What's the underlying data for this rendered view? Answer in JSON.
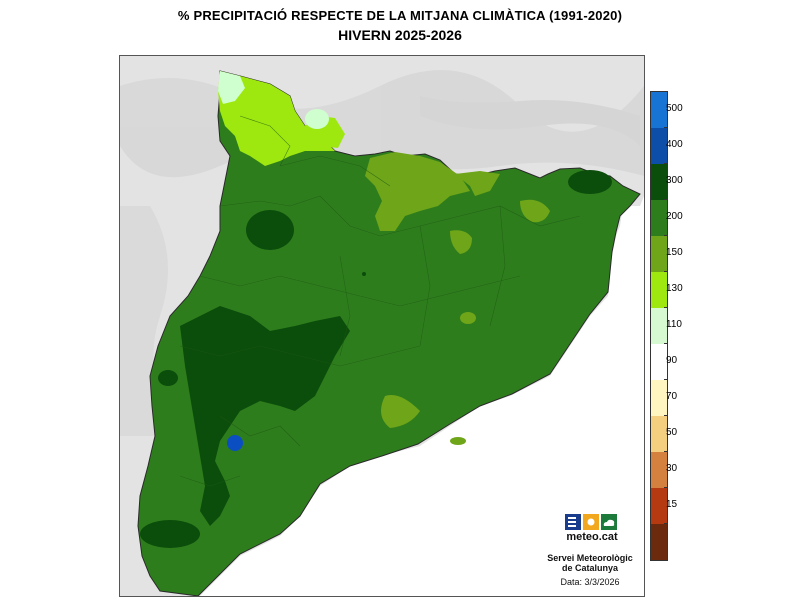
{
  "header": {
    "title": "% PRECIPITACIÓ RESPECTE DE LA MITJANA CLIMÀTICA (1991-2020)",
    "subtitle": "HIVERN 2025-2026"
  },
  "colors": {
    "land_dark": "#0b4d0b",
    "land_main": "#2e7d1d",
    "land_mid": "#6fa519",
    "land_light": "#9ee810",
    "land_pale": "#cfffcf",
    "relief_bg": "#e3e3e3",
    "sea": "#ffffff",
    "point_max": "#0b4ec2"
  },
  "legend": {
    "labels": [
      "500",
      "400",
      "300",
      "200",
      "150",
      "130",
      "110",
      "90",
      "70",
      "50",
      "30",
      "15"
    ],
    "colors": [
      "#1874d4",
      "#0d4fa8",
      "#0b4d0b",
      "#2e7d1d",
      "#6fa519",
      "#9ee810",
      "#d6f9d2",
      "#ffffff",
      "#fff5c0",
      "#f5cf80",
      "#d4803e",
      "#b53a12",
      "#6b2a0e"
    ]
  },
  "logo": {
    "text": "meteo.cat",
    "icon_names": [
      "menu-icon",
      "sun-icon",
      "cloud-icon"
    ]
  },
  "credits": {
    "line1": "Servei Meteorològic",
    "line2": "de Catalunya",
    "date_label": "Data: 3/3/2026"
  }
}
